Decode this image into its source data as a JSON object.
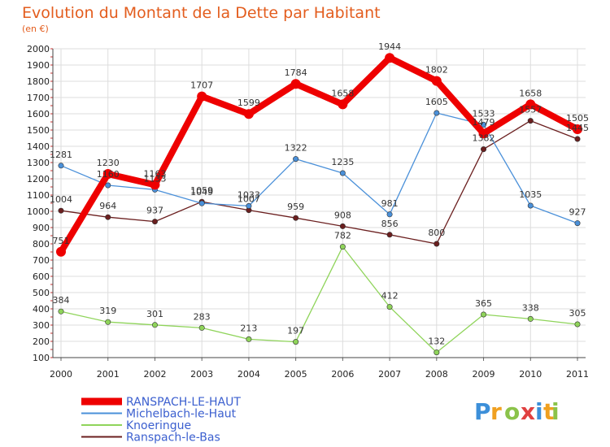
{
  "chart_data": {
    "type": "line",
    "title": "Evolution du Montant de la Dette par Habitant",
    "subtitle": "(en €)",
    "x": [
      "2000",
      "2001",
      "2002",
      "2003",
      "2004",
      "2005",
      "2006",
      "2007",
      "2008",
      "2009",
      "2010",
      "2011"
    ],
    "ylim": [
      100,
      2000
    ],
    "yticks": [
      100,
      200,
      300,
      400,
      500,
      600,
      700,
      800,
      900,
      1000,
      1100,
      1200,
      1300,
      1400,
      1500,
      1600,
      1700,
      1800,
      1900,
      2000
    ],
    "grid": true,
    "legend_position": "bottom-left",
    "series": [
      {
        "name": "RANSPACH-LE-HAUT",
        "color": "#ee0000",
        "values": [
          751,
          1230,
          1163,
          1707,
          1599,
          1784,
          1658,
          1944,
          1802,
          1479,
          1658,
          1505
        ]
      },
      {
        "name": "Michelbach-le-Haut",
        "color": "#4a90d9",
        "values": [
          1281,
          1160,
          1133,
          1049,
          1033,
          1322,
          1235,
          981,
          1605,
          1533,
          1035,
          927
        ]
      },
      {
        "name": "Knoeringue",
        "color": "#8fd45a",
        "values": [
          384,
          319,
          301,
          283,
          213,
          197,
          782,
          412,
          132,
          365,
          338,
          305
        ]
      },
      {
        "name": "Ranspach-le-Bas",
        "color": "#6b1f1f",
        "values": [
          1004,
          964,
          937,
          1059,
          1007,
          959,
          908,
          856,
          800,
          1382,
          1557,
          1445
        ]
      }
    ]
  },
  "logo": {
    "letters": [
      "P",
      "r",
      "o",
      "x",
      "i",
      "t",
      "i"
    ],
    "colors": [
      "#3c8fd9",
      "#f0a020",
      "#8bc34a",
      "#e04040",
      "#3c8fd9",
      "#f0a020",
      "#8bc34a"
    ]
  }
}
